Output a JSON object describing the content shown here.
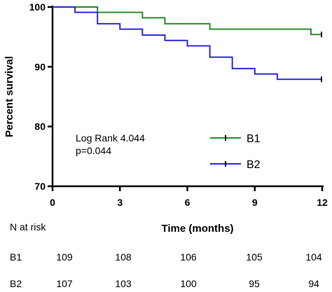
{
  "chart_data": {
    "type": "line",
    "step": true,
    "ylabel": "Percent survival",
    "xlabel": "Time  (months)",
    "xlim": [
      0,
      12
    ],
    "ylim": [
      70,
      100
    ],
    "x_ticks": [
      0,
      3,
      6,
      9,
      12
    ],
    "y_ticks": [
      70,
      80,
      90,
      100
    ],
    "grid": false,
    "legend_position": "right-middle",
    "annotation": [
      "Log Rank 4.044",
      "p=0.044"
    ],
    "series": [
      {
        "name": "B1",
        "color": "#2e8b2e",
        "steps": [
          [
            0,
            100
          ],
          [
            2,
            99.1
          ],
          [
            4,
            98.2
          ],
          [
            5,
            97.2
          ],
          [
            7,
            96.3
          ],
          [
            11.5,
            95.4
          ],
          [
            12,
            95.4
          ]
        ],
        "censor": [
          [
            12,
            95.4
          ]
        ]
      },
      {
        "name": "B2",
        "color": "#2b2bd6",
        "steps": [
          [
            0,
            100
          ],
          [
            1,
            99.1
          ],
          [
            2,
            97.2
          ],
          [
            3,
            96.3
          ],
          [
            4,
            95.3
          ],
          [
            5,
            94.4
          ],
          [
            6,
            93.5
          ],
          [
            7,
            91.6
          ],
          [
            8,
            89.7
          ],
          [
            9,
            88.8
          ],
          [
            10,
            87.9
          ],
          [
            12,
            87.9
          ]
        ],
        "censor": [
          [
            12,
            87.9
          ]
        ]
      }
    ],
    "risk_table": {
      "header": "N at risk",
      "times": [
        0,
        3,
        6,
        9,
        12
      ],
      "rows": [
        {
          "name": "B1",
          "values": [
            109,
            108,
            106,
            105,
            104
          ]
        },
        {
          "name": "B2",
          "values": [
            107,
            103,
            100,
            95,
            94
          ]
        }
      ]
    }
  }
}
